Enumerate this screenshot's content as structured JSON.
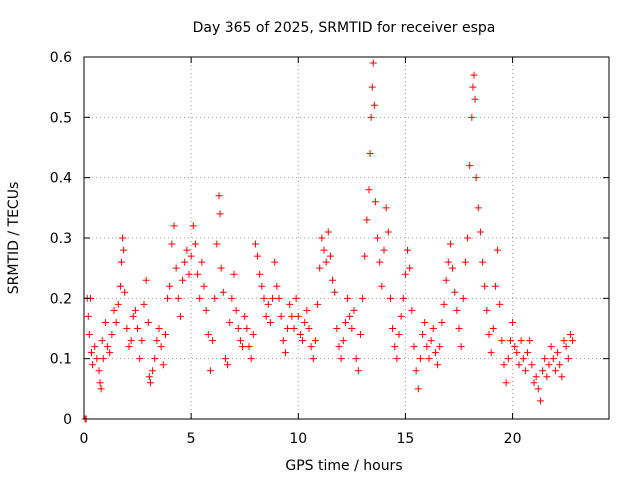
{
  "chart_data": {
    "type": "scatter",
    "title": "Day 365 of 2025, SRMTID for receiver espa",
    "xlabel": "GPS time / hours",
    "ylabel": "SRMTID / TECUs",
    "xlim": [
      0,
      24.5
    ],
    "ylim": [
      0,
      0.6
    ],
    "xticks": [
      0,
      5,
      10,
      15,
      20
    ],
    "xtick_labels": [
      "0",
      "5",
      "10",
      "15",
      "20"
    ],
    "yticks": [
      0,
      0.1,
      0.2,
      0.3,
      0.4,
      0.5,
      0.6
    ],
    "ytick_labels": [
      "0",
      "0.1",
      "0.2",
      "0.3",
      "0.4",
      "0.5",
      "0.6"
    ],
    "grid": true,
    "marker": "+",
    "color": "#ff0000",
    "series": [
      {
        "name": "SRMTID",
        "points": [
          [
            0.05,
            0.0
          ],
          [
            0.1,
            0.0
          ],
          [
            0.15,
            0.2
          ],
          [
            0.2,
            0.17
          ],
          [
            0.25,
            0.14
          ],
          [
            0.3,
            0.2
          ],
          [
            0.35,
            0.11
          ],
          [
            0.4,
            0.09
          ],
          [
            0.5,
            0.12
          ],
          [
            0.6,
            0.1
          ],
          [
            0.7,
            0.08
          ],
          [
            0.75,
            0.06
          ],
          [
            0.8,
            0.05
          ],
          [
            0.85,
            0.13
          ],
          [
            0.9,
            0.1
          ],
          [
            1.0,
            0.16
          ],
          [
            1.1,
            0.12
          ],
          [
            1.2,
            0.11
          ],
          [
            1.3,
            0.14
          ],
          [
            1.4,
            0.18
          ],
          [
            1.5,
            0.16
          ],
          [
            1.6,
            0.19
          ],
          [
            1.7,
            0.22
          ],
          [
            1.75,
            0.26
          ],
          [
            1.8,
            0.3
          ],
          [
            1.85,
            0.28
          ],
          [
            1.9,
            0.21
          ],
          [
            2.0,
            0.15
          ],
          [
            2.1,
            0.12
          ],
          [
            2.2,
            0.13
          ],
          [
            2.3,
            0.17
          ],
          [
            2.4,
            0.18
          ],
          [
            2.5,
            0.15
          ],
          [
            2.6,
            0.1
          ],
          [
            2.7,
            0.13
          ],
          [
            2.8,
            0.19
          ],
          [
            2.9,
            0.23
          ],
          [
            3.0,
            0.16
          ],
          [
            3.05,
            0.07
          ],
          [
            3.1,
            0.06
          ],
          [
            3.2,
            0.08
          ],
          [
            3.3,
            0.1
          ],
          [
            3.4,
            0.13
          ],
          [
            3.5,
            0.15
          ],
          [
            3.6,
            0.12
          ],
          [
            3.7,
            0.09
          ],
          [
            3.8,
            0.14
          ],
          [
            3.9,
            0.2
          ],
          [
            4.0,
            0.22
          ],
          [
            4.1,
            0.29
          ],
          [
            4.2,
            0.32
          ],
          [
            4.3,
            0.25
          ],
          [
            4.4,
            0.2
          ],
          [
            4.5,
            0.17
          ],
          [
            4.6,
            0.23
          ],
          [
            4.7,
            0.26
          ],
          [
            4.8,
            0.28
          ],
          [
            4.9,
            0.24
          ],
          [
            5.0,
            0.27
          ],
          [
            5.1,
            0.32
          ],
          [
            5.2,
            0.29
          ],
          [
            5.3,
            0.24
          ],
          [
            5.4,
            0.2
          ],
          [
            5.5,
            0.26
          ],
          [
            5.6,
            0.22
          ],
          [
            5.7,
            0.18
          ],
          [
            5.8,
            0.14
          ],
          [
            5.9,
            0.08
          ],
          [
            6.0,
            0.13
          ],
          [
            6.1,
            0.2
          ],
          [
            6.2,
            0.29
          ],
          [
            6.3,
            0.37
          ],
          [
            6.35,
            0.34
          ],
          [
            6.4,
            0.25
          ],
          [
            6.5,
            0.21
          ],
          [
            6.6,
            0.1
          ],
          [
            6.7,
            0.09
          ],
          [
            6.8,
            0.16
          ],
          [
            6.9,
            0.2
          ],
          [
            7.0,
            0.24
          ],
          [
            7.1,
            0.18
          ],
          [
            7.2,
            0.15
          ],
          [
            7.3,
            0.13
          ],
          [
            7.4,
            0.12
          ],
          [
            7.5,
            0.17
          ],
          [
            7.6,
            0.15
          ],
          [
            7.7,
            0.12
          ],
          [
            7.8,
            0.1
          ],
          [
            7.9,
            0.14
          ],
          [
            8.0,
            0.29
          ],
          [
            8.1,
            0.27
          ],
          [
            8.2,
            0.24
          ],
          [
            8.3,
            0.22
          ],
          [
            8.4,
            0.2
          ],
          [
            8.5,
            0.17
          ],
          [
            8.6,
            0.19
          ],
          [
            8.7,
            0.16
          ],
          [
            8.8,
            0.2
          ],
          [
            8.9,
            0.26
          ],
          [
            9.0,
            0.22
          ],
          [
            9.1,
            0.2
          ],
          [
            9.2,
            0.17
          ],
          [
            9.3,
            0.13
          ],
          [
            9.4,
            0.11
          ],
          [
            9.5,
            0.15
          ],
          [
            9.6,
            0.19
          ],
          [
            9.7,
            0.17
          ],
          [
            9.8,
            0.15
          ],
          [
            9.9,
            0.2
          ],
          [
            10.0,
            0.17
          ],
          [
            10.1,
            0.14
          ],
          [
            10.2,
            0.13
          ],
          [
            10.3,
            0.16
          ],
          [
            10.4,
            0.18
          ],
          [
            10.5,
            0.15
          ],
          [
            10.6,
            0.12
          ],
          [
            10.7,
            0.1
          ],
          [
            10.8,
            0.13
          ],
          [
            10.9,
            0.19
          ],
          [
            11.0,
            0.25
          ],
          [
            11.1,
            0.3
          ],
          [
            11.2,
            0.28
          ],
          [
            11.3,
            0.26
          ],
          [
            11.4,
            0.31
          ],
          [
            11.5,
            0.27
          ],
          [
            11.6,
            0.23
          ],
          [
            11.7,
            0.21
          ],
          [
            11.8,
            0.15
          ],
          [
            11.9,
            0.12
          ],
          [
            12.0,
            0.1
          ],
          [
            12.1,
            0.13
          ],
          [
            12.2,
            0.16
          ],
          [
            12.3,
            0.2
          ],
          [
            12.4,
            0.17
          ],
          [
            12.5,
            0.15
          ],
          [
            12.6,
            0.18
          ],
          [
            12.7,
            0.1
          ],
          [
            12.8,
            0.08
          ],
          [
            12.9,
            0.14
          ],
          [
            13.0,
            0.2
          ],
          [
            13.1,
            0.27
          ],
          [
            13.2,
            0.33
          ],
          [
            13.3,
            0.38
          ],
          [
            13.35,
            0.44
          ],
          [
            13.4,
            0.5
          ],
          [
            13.45,
            0.55
          ],
          [
            13.5,
            0.59
          ],
          [
            13.55,
            0.52
          ],
          [
            13.6,
            0.36
          ],
          [
            13.7,
            0.3
          ],
          [
            13.8,
            0.26
          ],
          [
            13.9,
            0.22
          ],
          [
            14.0,
            0.28
          ],
          [
            14.1,
            0.35
          ],
          [
            14.2,
            0.31
          ],
          [
            14.3,
            0.2
          ],
          [
            14.4,
            0.15
          ],
          [
            14.5,
            0.12
          ],
          [
            14.6,
            0.1
          ],
          [
            14.7,
            0.14
          ],
          [
            14.8,
            0.17
          ],
          [
            14.9,
            0.2
          ],
          [
            15.0,
            0.24
          ],
          [
            15.1,
            0.28
          ],
          [
            15.2,
            0.25
          ],
          [
            15.3,
            0.18
          ],
          [
            15.4,
            0.12
          ],
          [
            15.5,
            0.08
          ],
          [
            15.6,
            0.05
          ],
          [
            15.7,
            0.1
          ],
          [
            15.8,
            0.14
          ],
          [
            15.9,
            0.16
          ],
          [
            16.0,
            0.12
          ],
          [
            16.1,
            0.1
          ],
          [
            16.2,
            0.13
          ],
          [
            16.3,
            0.15
          ],
          [
            16.4,
            0.11
          ],
          [
            16.5,
            0.09
          ],
          [
            16.6,
            0.12
          ],
          [
            16.7,
            0.16
          ],
          [
            16.8,
            0.19
          ],
          [
            16.9,
            0.23
          ],
          [
            17.0,
            0.26
          ],
          [
            17.1,
            0.29
          ],
          [
            17.2,
            0.25
          ],
          [
            17.3,
            0.21
          ],
          [
            17.4,
            0.18
          ],
          [
            17.5,
            0.15
          ],
          [
            17.6,
            0.12
          ],
          [
            17.7,
            0.2
          ],
          [
            17.8,
            0.26
          ],
          [
            17.9,
            0.3
          ],
          [
            18.0,
            0.42
          ],
          [
            18.1,
            0.5
          ],
          [
            18.15,
            0.55
          ],
          [
            18.2,
            0.57
          ],
          [
            18.25,
            0.53
          ],
          [
            18.3,
            0.4
          ],
          [
            18.4,
            0.35
          ],
          [
            18.5,
            0.31
          ],
          [
            18.6,
            0.26
          ],
          [
            18.7,
            0.22
          ],
          [
            18.8,
            0.18
          ],
          [
            18.9,
            0.14
          ],
          [
            19.0,
            0.11
          ],
          [
            19.1,
            0.15
          ],
          [
            19.2,
            0.22
          ],
          [
            19.3,
            0.28
          ],
          [
            19.4,
            0.19
          ],
          [
            19.5,
            0.13
          ],
          [
            19.6,
            0.09
          ],
          [
            19.7,
            0.06
          ],
          [
            19.8,
            0.1
          ],
          [
            19.9,
            0.13
          ],
          [
            20.0,
            0.16
          ],
          [
            20.1,
            0.12
          ],
          [
            20.2,
            0.11
          ],
          [
            20.3,
            0.09
          ],
          [
            20.4,
            0.13
          ],
          [
            20.5,
            0.1
          ],
          [
            20.6,
            0.08
          ],
          [
            20.7,
            0.11
          ],
          [
            20.8,
            0.13
          ],
          [
            20.9,
            0.09
          ],
          [
            21.0,
            0.06
          ],
          [
            21.1,
            0.07
          ],
          [
            21.2,
            0.05
          ],
          [
            21.3,
            0.03
          ],
          [
            21.4,
            0.08
          ],
          [
            21.5,
            0.1
          ],
          [
            21.6,
            0.07
          ],
          [
            21.7,
            0.09
          ],
          [
            21.8,
            0.12
          ],
          [
            21.9,
            0.1
          ],
          [
            22.0,
            0.08
          ],
          [
            22.1,
            0.11
          ],
          [
            22.2,
            0.09
          ],
          [
            22.3,
            0.07
          ],
          [
            22.4,
            0.13
          ],
          [
            22.5,
            0.12
          ],
          [
            22.6,
            0.1
          ],
          [
            22.7,
            0.14
          ],
          [
            22.8,
            0.13
          ]
        ]
      }
    ]
  }
}
